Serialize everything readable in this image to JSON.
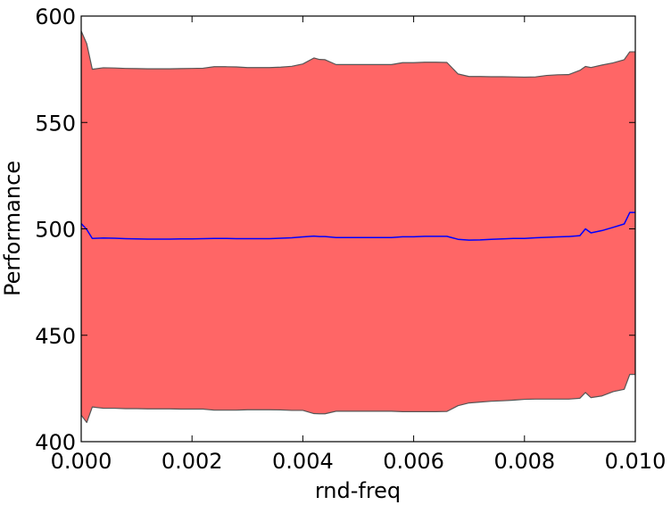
{
  "chart_data": {
    "type": "area",
    "title": "",
    "xlabel": "rnd-freq",
    "ylabel": "Performance",
    "xlim": [
      0.0,
      0.01
    ],
    "ylim": [
      400,
      600
    ],
    "xticks": [
      0.0,
      0.002,
      0.004,
      0.006,
      0.008,
      0.01
    ],
    "xtick_labels": [
      "0.000",
      "0.002",
      "0.004",
      "0.006",
      "0.008",
      "0.010"
    ],
    "yticks": [
      400,
      450,
      500,
      550,
      600
    ],
    "ytick_labels": [
      "400",
      "450",
      "500",
      "550",
      "600"
    ],
    "grid": false,
    "legend": "none",
    "colors": {
      "band_fill": "#ff6666",
      "band_edge": "#555555",
      "mean_line": "#0000ff",
      "axes": "#000000"
    },
    "x": [
      0.0,
      0.0001,
      0.0002,
      0.0004,
      0.0006,
      0.0008,
      0.001,
      0.0012,
      0.0014,
      0.0016,
      0.0018,
      0.002,
      0.0022,
      0.0024,
      0.0026,
      0.0028,
      0.003,
      0.0032,
      0.0034,
      0.0036,
      0.0038,
      0.004,
      0.0042,
      0.0043,
      0.0044,
      0.0046,
      0.0048,
      0.005,
      0.0052,
      0.0054,
      0.0056,
      0.0058,
      0.006,
      0.0062,
      0.0064,
      0.0066,
      0.0068,
      0.007,
      0.0072,
      0.0074,
      0.0076,
      0.0078,
      0.008,
      0.0082,
      0.0084,
      0.0086,
      0.0088,
      0.009,
      0.0091,
      0.0092,
      0.0094,
      0.0096,
      0.0098,
      0.0099,
      0.01
    ],
    "series": [
      {
        "role": "upper",
        "values": [
          593,
          587,
          575,
          575.7,
          575.6,
          575.4,
          575.3,
          575.2,
          575.2,
          575.2,
          575.3,
          575.4,
          575.5,
          576.2,
          576.2,
          576.1,
          575.8,
          575.8,
          575.8,
          576,
          576.4,
          577.5,
          580.3,
          579.6,
          579.5,
          577.2,
          577.2,
          577.2,
          577.2,
          577.2,
          577.2,
          578.1,
          578.1,
          578.3,
          578.3,
          578.2,
          572.8,
          571.6,
          571.6,
          571.5,
          571.5,
          571.4,
          571.3,
          571.4,
          572.1,
          572.4,
          572.5,
          574.5,
          576.3,
          575.8,
          577,
          578,
          579.5,
          583.2,
          583.2
        ]
      },
      {
        "role": "mean",
        "values": [
          502.5,
          499.7,
          495.5,
          495.7,
          495.6,
          495.4,
          495.3,
          495.2,
          495.2,
          495.2,
          495.3,
          495.3,
          495.4,
          495.5,
          495.5,
          495.4,
          495.4,
          495.4,
          495.4,
          495.6,
          495.8,
          496.2,
          496.6,
          496.4,
          496.4,
          495.9,
          495.9,
          495.9,
          495.9,
          495.9,
          495.9,
          496.3,
          496.3,
          496.5,
          496.5,
          496.5,
          495.1,
          494.7,
          494.8,
          495.1,
          495.3,
          495.5,
          495.5,
          495.8,
          496,
          496.2,
          496.4,
          496.8,
          500,
          498.1,
          499.2,
          500.7,
          502.3,
          507.7,
          507.7
        ]
      },
      {
        "role": "lower",
        "values": [
          412.5,
          409,
          416.3,
          415.7,
          415.7,
          415.5,
          415.5,
          415.4,
          415.4,
          415.4,
          415.3,
          415.3,
          415.3,
          414.8,
          414.8,
          414.8,
          415,
          415,
          415,
          414.9,
          414.7,
          414.7,
          413.2,
          413.1,
          413.1,
          414.3,
          414.3,
          414.3,
          414.3,
          414.3,
          414.3,
          414.1,
          414.1,
          414.1,
          414.1,
          414.2,
          416.9,
          418.2,
          418.6,
          419,
          419.2,
          419.5,
          419.9,
          420,
          420,
          420,
          420,
          420.4,
          423.1,
          420.7,
          421.5,
          423.5,
          424.6,
          431.6,
          431.6
        ]
      }
    ]
  }
}
